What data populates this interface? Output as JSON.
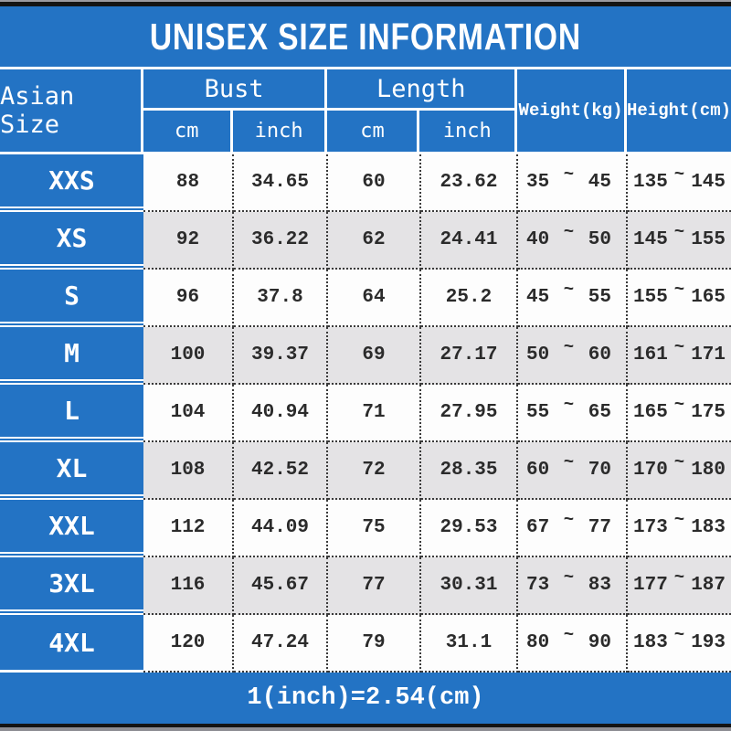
{
  "title": "UNISEX SIZE INFORMATION",
  "separator": "~",
  "header": {
    "size_column": "Asian Size",
    "bust": "Bust",
    "length": "Length",
    "cm": "cm",
    "inch": "inch",
    "weight": "Weight(kg)",
    "height": "Height(cm)"
  },
  "rows": [
    {
      "size": "XXS",
      "bust_cm": "88",
      "bust_inch": "34.65",
      "length_cm": "60",
      "length_inch": "23.62",
      "weight_min": "35",
      "weight_max": "45",
      "height_min": "135",
      "height_max": "145"
    },
    {
      "size": "XS",
      "bust_cm": "92",
      "bust_inch": "36.22",
      "length_cm": "62",
      "length_inch": "24.41",
      "weight_min": "40",
      "weight_max": "50",
      "height_min": "145",
      "height_max": "155"
    },
    {
      "size": "S",
      "bust_cm": "96",
      "bust_inch": "37.8",
      "length_cm": "64",
      "length_inch": "25.2",
      "weight_min": "45",
      "weight_max": "55",
      "height_min": "155",
      "height_max": "165"
    },
    {
      "size": "M",
      "bust_cm": "100",
      "bust_inch": "39.37",
      "length_cm": "69",
      "length_inch": "27.17",
      "weight_min": "50",
      "weight_max": "60",
      "height_min": "161",
      "height_max": "171"
    },
    {
      "size": "L",
      "bust_cm": "104",
      "bust_inch": "40.94",
      "length_cm": "71",
      "length_inch": "27.95",
      "weight_min": "55",
      "weight_max": "65",
      "height_min": "165",
      "height_max": "175"
    },
    {
      "size": "XL",
      "bust_cm": "108",
      "bust_inch": "42.52",
      "length_cm": "72",
      "length_inch": "28.35",
      "weight_min": "60",
      "weight_max": "70",
      "height_min": "170",
      "height_max": "180"
    },
    {
      "size": "XXL",
      "bust_cm": "112",
      "bust_inch": "44.09",
      "length_cm": "75",
      "length_inch": "29.53",
      "weight_min": "67",
      "weight_max": "77",
      "height_min": "173",
      "height_max": "183"
    },
    {
      "size": "3XL",
      "bust_cm": "116",
      "bust_inch": "45.67",
      "length_cm": "77",
      "length_inch": "30.31",
      "weight_min": "73",
      "weight_max": "83",
      "height_min": "177",
      "height_max": "187"
    },
    {
      "size": "4XL",
      "bust_cm": "120",
      "bust_inch": "47.24",
      "length_cm": "79",
      "length_inch": "31.1",
      "weight_min": "80",
      "weight_max": "90",
      "height_min": "183",
      "height_max": "193"
    }
  ],
  "footer": {
    "note": "1(inch)=2.54(cm)"
  },
  "colors": {
    "accent_blue": "#2373c4",
    "row_alt_gray": "#e4e3e5",
    "row_white": "#fdfdfd",
    "text_dark": "#2b2b2b",
    "grid_white": "#ffffff",
    "dotted_border": "#3a3a3a",
    "bar_black": "#141414"
  }
}
